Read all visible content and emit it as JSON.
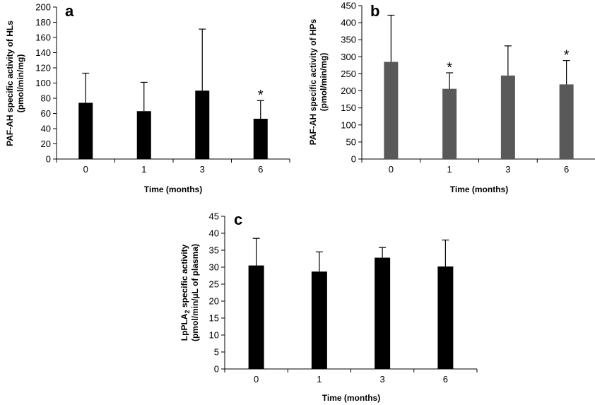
{
  "chart_data": [
    {
      "panel": "a",
      "type": "bar",
      "categories": [
        "0",
        "1",
        "3",
        "6"
      ],
      "values": [
        74,
        63,
        90,
        53
      ],
      "error_plus": [
        39,
        38,
        81,
        24
      ],
      "significant": [
        "",
        "",
        "",
        "*"
      ],
      "xlabel": "Time (months)",
      "ylabel_line1": "PAF-AH specific activity of HLs",
      "ylabel_line2": "(pmol/min/mg)",
      "ylim": [
        0,
        200
      ],
      "yticks": [
        0,
        20,
        40,
        60,
        80,
        100,
        120,
        140,
        160,
        180,
        200
      ],
      "bar_color": "#000000",
      "grid": false
    },
    {
      "panel": "b",
      "type": "bar",
      "categories": [
        "0",
        "1",
        "3",
        "6"
      ],
      "values": [
        285,
        206,
        245,
        219
      ],
      "error_plus": [
        137,
        47,
        87,
        70
      ],
      "significant": [
        "",
        "*",
        "",
        "*"
      ],
      "xlabel": "Time (months)",
      "ylabel_line1": "PAF-AH specific activity of HPs",
      "ylabel_line2": "(pmol/min/mg)",
      "ylim": [
        0,
        450
      ],
      "yticks": [
        0,
        50,
        100,
        150,
        200,
        250,
        300,
        350,
        400,
        450
      ],
      "bar_color": "#595959",
      "grid": false
    },
    {
      "panel": "c",
      "type": "bar",
      "categories": [
        "0",
        "1",
        "3",
        "6"
      ],
      "values": [
        30.5,
        28.7,
        32.8,
        30.2
      ],
      "error_plus": [
        8.0,
        5.8,
        3.0,
        7.8
      ],
      "significant": [
        "",
        "",
        "",
        ""
      ],
      "xlabel": "Time (months)",
      "ylabel_line1_prefix": "LpPLA",
      "ylabel_line1_sub": "2",
      "ylabel_line1_suffix": " specific activity",
      "ylabel_line2": "(pmol/min/µL of plasma)",
      "ylim": [
        0,
        45
      ],
      "yticks": [
        0,
        5,
        10,
        15,
        20,
        25,
        30,
        35,
        40,
        45
      ],
      "bar_color": "#000000",
      "grid": false
    }
  ]
}
